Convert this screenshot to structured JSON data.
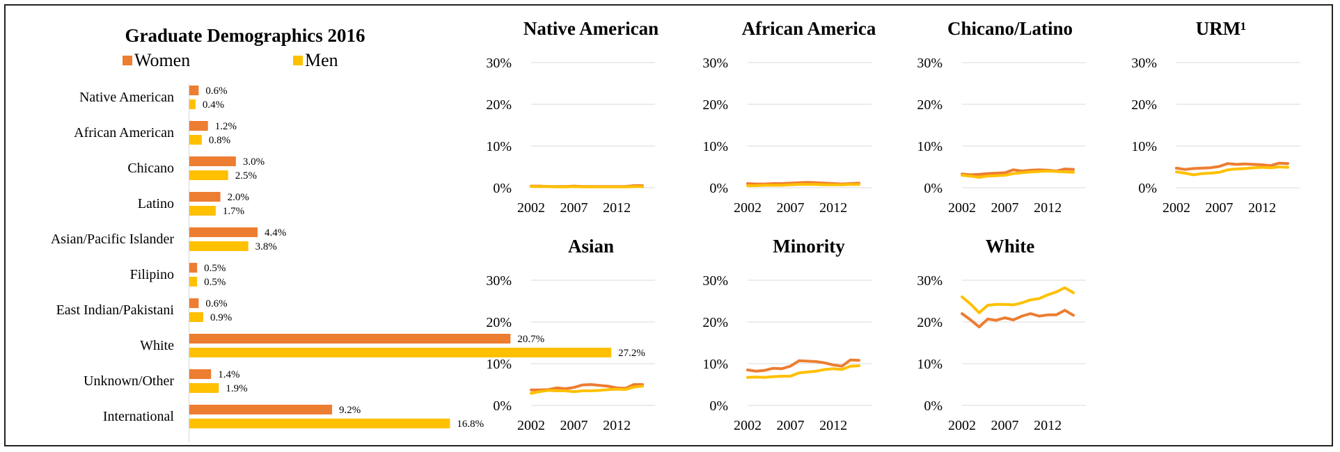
{
  "colors": {
    "women": "#ED7D31",
    "men": "#FFC000",
    "grid": "#d9d9d9"
  },
  "chart_data": [
    {
      "type": "bar",
      "orientation": "horizontal",
      "title": "Graduate Demographics 2016",
      "legend": [
        "Women",
        "Men"
      ],
      "legend_position": "top",
      "categories": [
        "Native American",
        "African American",
        "Chicano",
        "Latino",
        "Asian/Pacific Islander",
        "Filipino",
        "East Indian/Pakistani",
        "White",
        "Unknown/Other",
        "International"
      ],
      "series": [
        {
          "name": "Women",
          "values": [
            0.6,
            1.2,
            3.0,
            2.0,
            4.4,
            0.5,
            0.6,
            20.7,
            1.4,
            9.2
          ]
        },
        {
          "name": "Men",
          "values": [
            0.4,
            0.8,
            2.5,
            1.7,
            3.8,
            0.5,
            0.9,
            27.2,
            1.9,
            16.8
          ]
        }
      ],
      "value_labels": {
        "Women": [
          "0.6%",
          "1.2%",
          "3.0%",
          "2.0%",
          "4.4%",
          "0.5%",
          "0.6%",
          "20.7%",
          "1.4%",
          "9.2%"
        ],
        "Men": [
          "0.4%",
          "0.8%",
          "2.5%",
          "1.7%",
          "3.8%",
          "0.5%",
          "0.9%",
          "27.2%",
          "1.9%",
          "16.8%"
        ]
      },
      "xlim": [
        0,
        28
      ]
    },
    {
      "type": "line",
      "title": "Native American",
      "x": [
        2002,
        2003,
        2004,
        2005,
        2006,
        2007,
        2008,
        2009,
        2010,
        2011,
        2012,
        2013,
        2014,
        2015
      ],
      "xticks": [
        "2002",
        "2007",
        "2012"
      ],
      "yticks": [
        "0%",
        "10%",
        "20%",
        "30%"
      ],
      "ylim": [
        0,
        30
      ],
      "series": [
        {
          "values": [
            0.4,
            0.4,
            0.3,
            0.3,
            0.3,
            0.4,
            0.3,
            0.3,
            0.3,
            0.3,
            0.3,
            0.3,
            0.5,
            0.5
          ]
        },
        {
          "values": [
            0.3,
            0.3,
            0.3,
            0.2,
            0.2,
            0.3,
            0.2,
            0.2,
            0.2,
            0.2,
            0.2,
            0.2,
            0.3,
            0.3
          ]
        }
      ]
    },
    {
      "type": "line",
      "title": "African America",
      "x": [
        2002,
        2003,
        2004,
        2005,
        2006,
        2007,
        2008,
        2009,
        2010,
        2011,
        2012,
        2013,
        2014,
        2015
      ],
      "xticks": [
        "2002",
        "2007",
        "2012"
      ],
      "yticks": [
        "0%",
        "10%",
        "20%",
        "30%"
      ],
      "ylim": [
        0,
        30
      ],
      "series": [
        {
          "values": [
            1.0,
            0.9,
            0.9,
            1.0,
            1.0,
            1.1,
            1.2,
            1.3,
            1.2,
            1.1,
            1.0,
            0.9,
            1.0,
            1.1
          ]
        },
        {
          "values": [
            0.5,
            0.5,
            0.6,
            0.6,
            0.6,
            0.7,
            0.8,
            0.8,
            0.8,
            0.7,
            0.7,
            0.7,
            0.8,
            0.8
          ]
        }
      ]
    },
    {
      "type": "line",
      "title": "Chicano/Latino",
      "x": [
        2002,
        2003,
        2004,
        2005,
        2006,
        2007,
        2008,
        2009,
        2010,
        2011,
        2012,
        2013,
        2014,
        2015
      ],
      "xticks": [
        "2002",
        "2007",
        "2012"
      ],
      "yticks": [
        "0%",
        "10%",
        "20%",
        "30%"
      ],
      "ylim": [
        0,
        30
      ],
      "series": [
        {
          "values": [
            3.3,
            3.1,
            3.2,
            3.4,
            3.5,
            3.6,
            4.3,
            4.0,
            4.2,
            4.3,
            4.2,
            4.0,
            4.5,
            4.4
          ]
        },
        {
          "values": [
            3.0,
            2.8,
            2.5,
            2.8,
            2.9,
            3.0,
            3.4,
            3.6,
            3.8,
            3.9,
            4.0,
            3.9,
            3.8,
            3.7
          ]
        }
      ]
    },
    {
      "type": "line",
      "title": "URM¹",
      "x": [
        2002,
        2003,
        2004,
        2005,
        2006,
        2007,
        2008,
        2009,
        2010,
        2011,
        2012,
        2013,
        2014,
        2015
      ],
      "xticks": [
        "2002",
        "2007",
        "2012"
      ],
      "yticks": [
        "0%",
        "10%",
        "20%",
        "30%"
      ],
      "ylim": [
        0,
        30
      ],
      "series": [
        {
          "values": [
            4.7,
            4.4,
            4.6,
            4.7,
            4.8,
            5.1,
            5.8,
            5.6,
            5.7,
            5.6,
            5.5,
            5.3,
            5.9,
            5.8
          ]
        },
        {
          "values": [
            3.8,
            3.5,
            3.1,
            3.4,
            3.5,
            3.7,
            4.3,
            4.5,
            4.6,
            4.8,
            4.9,
            4.8,
            5.0,
            4.9
          ]
        }
      ]
    },
    {
      "type": "line",
      "title": "Asian",
      "x": [
        2002,
        2003,
        2004,
        2005,
        2006,
        2007,
        2008,
        2009,
        2010,
        2011,
        2012,
        2013,
        2014,
        2015
      ],
      "xticks": [
        "2002",
        "2007",
        "2012"
      ],
      "yticks": [
        "0%",
        "10%",
        "20%",
        "30%"
      ],
      "ylim": [
        0,
        30
      ],
      "series": [
        {
          "values": [
            3.7,
            3.7,
            3.8,
            4.2,
            4.0,
            4.3,
            4.9,
            5.0,
            4.8,
            4.6,
            4.2,
            4.1,
            5.0,
            5.0
          ]
        },
        {
          "values": [
            2.9,
            3.3,
            3.6,
            3.5,
            3.5,
            3.3,
            3.5,
            3.5,
            3.6,
            3.8,
            3.9,
            3.8,
            4.4,
            4.6
          ]
        }
      ]
    },
    {
      "type": "line",
      "title": "Minority",
      "x": [
        2002,
        2003,
        2004,
        2005,
        2006,
        2007,
        2008,
        2009,
        2010,
        2011,
        2012,
        2013,
        2014,
        2015
      ],
      "xticks": [
        "2002",
        "2007",
        "2012"
      ],
      "yticks": [
        "0%",
        "10%",
        "20%",
        "30%"
      ],
      "ylim": [
        0,
        30
      ],
      "series": [
        {
          "values": [
            8.5,
            8.2,
            8.4,
            8.9,
            8.8,
            9.4,
            10.7,
            10.6,
            10.5,
            10.2,
            9.7,
            9.4,
            10.9,
            10.8
          ]
        },
        {
          "values": [
            6.7,
            6.8,
            6.7,
            6.9,
            7.0,
            7.0,
            7.8,
            8.0,
            8.2,
            8.6,
            8.8,
            8.6,
            9.4,
            9.5
          ]
        }
      ]
    },
    {
      "type": "line",
      "title": "White",
      "x": [
        2002,
        2003,
        2004,
        2005,
        2006,
        2007,
        2008,
        2009,
        2010,
        2011,
        2012,
        2013,
        2014,
        2015
      ],
      "xticks": [
        "2002",
        "2007",
        "2012"
      ],
      "yticks": [
        "0%",
        "10%",
        "20%",
        "30%"
      ],
      "ylim": [
        0,
        30
      ],
      "series": [
        {
          "values": [
            22.0,
            20.5,
            18.8,
            20.7,
            20.4,
            21.0,
            20.5,
            21.4,
            22.0,
            21.4,
            21.7,
            21.7,
            22.8,
            21.6
          ]
        },
        {
          "values": [
            26.0,
            24.3,
            22.2,
            24.0,
            24.2,
            24.2,
            24.1,
            24.6,
            25.3,
            25.6,
            26.5,
            27.2,
            28.2,
            27.0
          ]
        }
      ]
    }
  ]
}
